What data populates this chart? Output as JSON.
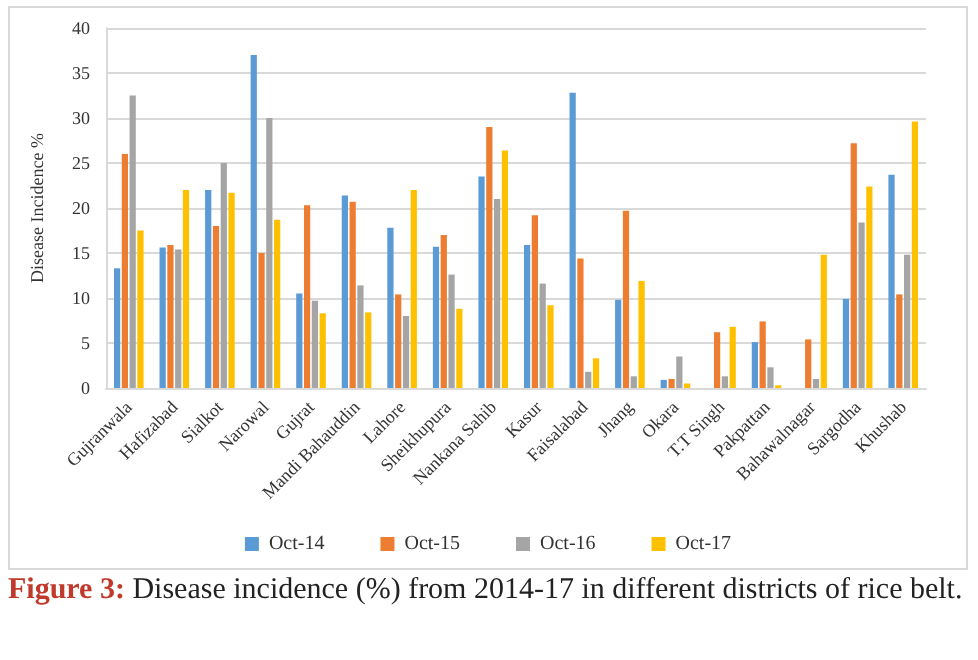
{
  "chart_data": {
    "type": "bar",
    "ylabel": "Disease Incidence %",
    "categories": [
      "Gujranwala",
      "Hafizabad",
      "Sialkot",
      "Narowal",
      "Gujrat",
      "Mandi Bahauddin",
      "Lahore",
      "Sheikhupura",
      "Nankana Sahib",
      "Kasur",
      "Faisalabad",
      "Jhang",
      "Okara",
      "T.T Singh",
      "Pakpattan",
      "Bahawalnagar",
      "Sargodha",
      "Khushab"
    ],
    "series": [
      {
        "name": "Oct-14",
        "color": "#5b9bd5",
        "values": [
          13.3,
          15.6,
          22,
          37,
          10.5,
          21.4,
          17.8,
          15.7,
          23.5,
          15.9,
          32.8,
          9.8,
          0.9,
          0,
          5.1,
          0,
          9.9,
          23.7
        ]
      },
      {
        "name": "Oct-15",
        "color": "#ed7d31",
        "values": [
          26,
          15.9,
          18,
          15,
          20.3,
          20.7,
          10.4,
          17,
          29,
          19.2,
          14.4,
          19.7,
          1,
          6.2,
          7.4,
          5.4,
          27.2,
          10.4
        ]
      },
      {
        "name": "Oct-16",
        "color": "#a5a5a5",
        "values": [
          32.5,
          15.4,
          25,
          30,
          9.7,
          11.4,
          8,
          12.6,
          21,
          11.6,
          1.8,
          1.3,
          3.5,
          1.3,
          2.3,
          1,
          18.4,
          14.8
        ]
      },
      {
        "name": "Oct-17",
        "color": "#ffc000",
        "values": [
          17.5,
          22,
          21.7,
          18.7,
          8.3,
          8.4,
          22,
          8.8,
          26.4,
          9.2,
          3.3,
          11.9,
          0.5,
          6.8,
          0.3,
          14.8,
          22.4,
          29.6
        ]
      }
    ],
    "ylim": [
      0,
      40
    ],
    "yticks": [
      0,
      5,
      10,
      15,
      20,
      25,
      30,
      35,
      40
    ],
    "grid": "y",
    "legend": "bottom",
    "annotations": [
      "Figure 3: Disease incidence (%) from 2014-17 in different districts of rice belt."
    ]
  }
}
